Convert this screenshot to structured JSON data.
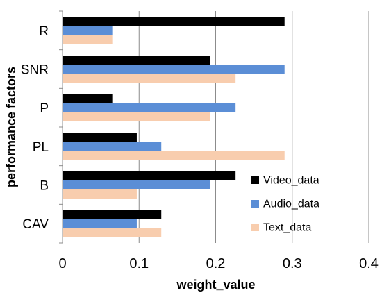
{
  "chart_data": {
    "type": "bar",
    "orientation": "horizontal",
    "categories": [
      "R",
      "SNR",
      "P",
      "PL",
      "B",
      "CAV"
    ],
    "series": [
      {
        "name": "Video_data",
        "color": "#000000",
        "values": [
          0.29,
          0.193,
          0.065,
          0.097,
          0.226,
          0.129
        ]
      },
      {
        "name": "Audio_data",
        "color": "#5B8ED6",
        "values": [
          0.065,
          0.29,
          0.226,
          0.129,
          0.193,
          0.097
        ]
      },
      {
        "name": "Text_data",
        "color": "#F8CDAE",
        "values": [
          0.065,
          0.226,
          0.193,
          0.29,
          0.097,
          0.129
        ]
      }
    ],
    "xlabel": "weight_value",
    "ylabel": "performance factors",
    "xlim": [
      0,
      0.4
    ],
    "xticks": [
      "0",
      "0.1",
      "0.2",
      "0.3",
      "0.4"
    ],
    "grid": "vertical",
    "legend_position": "bottom-right"
  }
}
